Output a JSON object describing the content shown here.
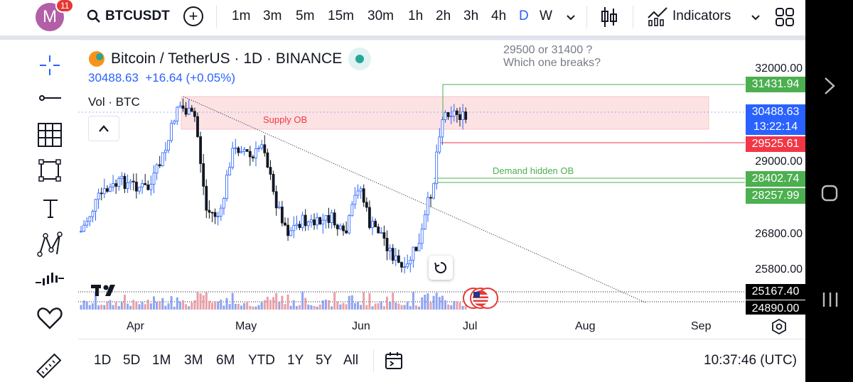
{
  "header": {
    "avatar_letter": "M",
    "notification_count": "11",
    "symbol": "BTCUSDT",
    "timeframes": [
      "1m",
      "3m",
      "5m",
      "15m",
      "30m",
      "1h",
      "2h",
      "3h",
      "4h",
      "D",
      "W"
    ],
    "active_timeframe": "D",
    "indicators_label": "Indicators"
  },
  "legend": {
    "title": "Bitcoin / TetherUS · 1D · BINANCE",
    "price_line": "30488.63  +16.64 (+0.05%)",
    "volume_label": "Vol · BTC"
  },
  "annotations": {
    "note_line1": "29500 or 31400 ?",
    "note_line2": "Which one breaks?",
    "supply_label": "Supply OB",
    "demand_label": "Demand hidden OB"
  },
  "price_axis": {
    "ticks": [
      "32000.00",
      "29000.00",
      "26800.00",
      "25800.00"
    ],
    "labels": [
      {
        "text": "31431.94",
        "color": "#4caf50"
      },
      {
        "text": "30488.63",
        "color": "#2962ff"
      },
      {
        "text": "13:22:14",
        "color": "#2962ff"
      },
      {
        "text": "29525.61",
        "color": "#f23645"
      },
      {
        "text": "28402.74",
        "color": "#4caf50"
      },
      {
        "text": "28257.99",
        "color": "#4caf50"
      },
      {
        "text": "25167.40",
        "color": "#000000"
      },
      {
        "text": "24890.00",
        "color": "#000000"
      }
    ]
  },
  "time_axis": {
    "labels": [
      "Apr",
      "May",
      "Jun",
      "Jul",
      "Aug",
      "Sep"
    ]
  },
  "bottom": {
    "ranges": [
      "1D",
      "5D",
      "1M",
      "3M",
      "6M",
      "YTD",
      "1Y",
      "5Y",
      "All"
    ],
    "clock": "10:37:46 (UTC)"
  },
  "colors": {
    "up": "#2962ff",
    "down": "#131722",
    "supply_zone": "#fde2e4",
    "demand_line": "#4caf50",
    "stop_line": "#f23645"
  }
}
